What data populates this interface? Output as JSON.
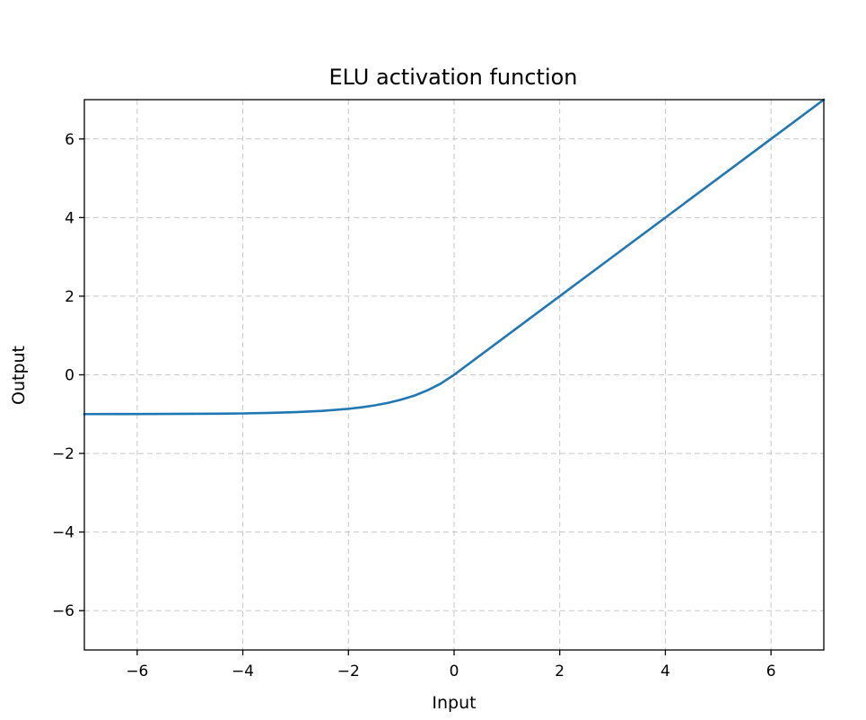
{
  "chart_data": {
    "type": "line",
    "title": "ELU activation function",
    "xlabel": "Input",
    "ylabel": "Output",
    "xlim": [
      -7,
      7
    ],
    "ylim": [
      -7,
      7
    ],
    "grid": true,
    "xticks": [
      -6,
      -4,
      -2,
      0,
      2,
      4,
      6
    ],
    "yticks": [
      -6,
      -4,
      -2,
      0,
      2,
      4,
      6
    ],
    "xtick_labels": [
      "−6",
      "−4",
      "−2",
      "0",
      "2",
      "4",
      "6"
    ],
    "ytick_labels": [
      "−6",
      "−4",
      "−2",
      "0",
      "2",
      "4",
      "6"
    ],
    "series": [
      {
        "color": "#1f77b4",
        "x": [
          -7,
          -6.5,
          -6,
          -5.5,
          -5,
          -4.5,
          -4,
          -3.5,
          -3,
          -2.5,
          -2,
          -1.75,
          -1.5,
          -1.25,
          -1,
          -0.75,
          -0.5,
          -0.25,
          0,
          1,
          2,
          3,
          4,
          5,
          6,
          7
        ],
        "y": [
          -0.999,
          -0.998,
          -0.998,
          -0.996,
          -0.993,
          -0.989,
          -0.982,
          -0.97,
          -0.95,
          -0.918,
          -0.865,
          -0.826,
          -0.777,
          -0.713,
          -0.632,
          -0.528,
          -0.393,
          -0.221,
          0,
          1,
          2,
          3,
          4,
          5,
          6,
          7
        ]
      }
    ]
  }
}
